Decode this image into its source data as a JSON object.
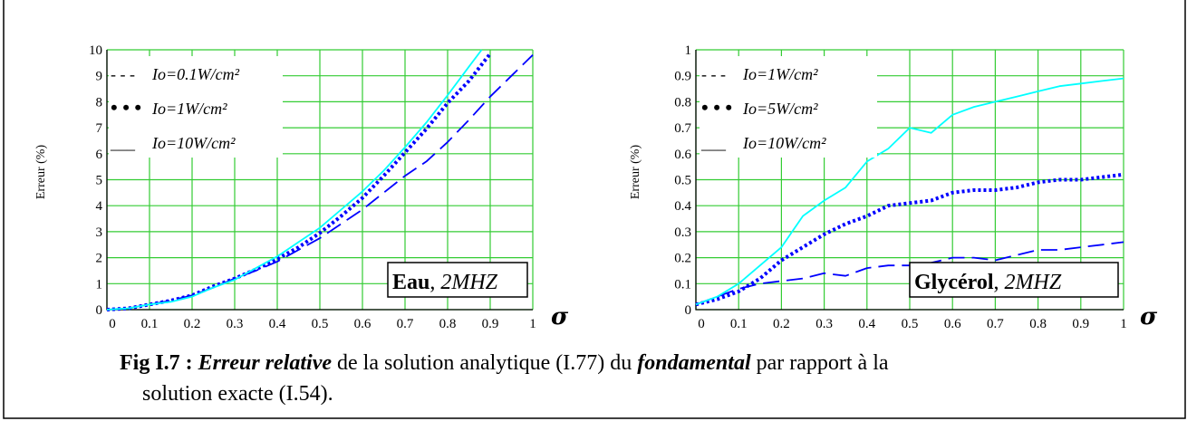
{
  "caption": {
    "fig_label": "Fig I.7 :",
    "em1": "Erreur relative",
    "text1": " de la solution analytique (I.77) du ",
    "em2": "fondamental",
    "text2": " par rapport à la",
    "line2": "solution exacte (I.54)."
  },
  "chart_data": [
    {
      "type": "line",
      "ylabel": "Erreur (%)",
      "xlabel": "σ",
      "xlim": [
        0,
        1
      ],
      "ylim": [
        0,
        10
      ],
      "grid": true,
      "xticks": [
        "0",
        "0.1",
        "0.2",
        "0.3",
        "0.4",
        "0.5",
        "0.6",
        "0.7",
        "0.8",
        "0.9",
        "1"
      ],
      "yticks": [
        "0",
        "1",
        "2",
        "3",
        "4",
        "5",
        "6",
        "7",
        "8",
        "9",
        "10"
      ],
      "legend_placement": "top-left",
      "annotation": {
        "bold": "Eau",
        "sep": ", ",
        "italic": "2MHZ"
      },
      "series": [
        {
          "name": "Io=0.1W/cm²",
          "legend_marker": "- - -",
          "color": "#0000ff",
          "style": "dashed",
          "x": [
            0,
            0.05,
            0.1,
            0.15,
            0.2,
            0.25,
            0.3,
            0.35,
            0.4,
            0.45,
            0.5,
            0.55,
            0.6,
            0.65,
            0.7,
            0.75,
            0.8,
            0.85,
            0.9,
            0.95,
            1.0
          ],
          "y": [
            0,
            0.05,
            0.2,
            0.35,
            0.55,
            0.85,
            1.2,
            1.5,
            1.85,
            2.3,
            2.75,
            3.3,
            3.85,
            4.5,
            5.15,
            5.7,
            6.45,
            7.3,
            8.2,
            9.0,
            9.8
          ]
        },
        {
          "name": "Io=1W/cm²",
          "legend_marker": "• • •",
          "color": "#0000ff",
          "style": "dotted",
          "x": [
            0,
            0.05,
            0.1,
            0.15,
            0.2,
            0.25,
            0.3,
            0.35,
            0.4,
            0.45,
            0.5,
            0.55,
            0.6,
            0.65,
            0.7,
            0.75,
            0.8,
            0.85,
            0.9
          ],
          "y": [
            0,
            0.05,
            0.2,
            0.35,
            0.55,
            0.9,
            1.2,
            1.55,
            1.95,
            2.4,
            2.95,
            3.6,
            4.3,
            5.15,
            6.05,
            6.95,
            7.95,
            8.8,
            9.85
          ]
        },
        {
          "name": "Io=10W/cm²",
          "legend_marker": "___",
          "color": "#00ffff",
          "style": "solid",
          "x": [
            0,
            0.05,
            0.1,
            0.15,
            0.2,
            0.25,
            0.3,
            0.35,
            0.4,
            0.45,
            0.5,
            0.55,
            0.6,
            0.65,
            0.7,
            0.75,
            0.8,
            0.85,
            0.88
          ],
          "y": [
            0,
            0.05,
            0.2,
            0.3,
            0.5,
            0.85,
            1.15,
            1.6,
            2.05,
            2.6,
            3.15,
            3.85,
            4.55,
            5.35,
            6.25,
            7.2,
            8.25,
            9.35,
            10.0
          ]
        }
      ]
    },
    {
      "type": "line",
      "ylabel": "Erreur (%)",
      "xlabel": "σ",
      "xlim": [
        0,
        1
      ],
      "ylim": [
        0,
        1
      ],
      "grid": true,
      "xticks": [
        "0",
        "0.1",
        "0.2",
        "0.3",
        "0.4",
        "0.5",
        "0.6",
        "0.7",
        "0.8",
        "0.9",
        "1"
      ],
      "yticks": [
        "0",
        "0.1",
        "0.2",
        "0.3",
        "0.4",
        "0.5",
        "0.6",
        "0.7",
        "0.8",
        "0.9",
        "1"
      ],
      "legend_placement": "top-left",
      "annotation": {
        "bold": "Glycérol",
        "sep": ", ",
        "italic": "2MHZ"
      },
      "series": [
        {
          "name": "Io=1W/cm²",
          "legend_marker": "- - -",
          "color": "#0000ff",
          "style": "dashed",
          "x": [
            0,
            0.05,
            0.1,
            0.15,
            0.2,
            0.25,
            0.3,
            0.35,
            0.4,
            0.45,
            0.5,
            0.55,
            0.6,
            0.65,
            0.7,
            0.75,
            0.8,
            0.85,
            0.9,
            0.95,
            1.0
          ],
          "y": [
            0.02,
            0.05,
            0.08,
            0.1,
            0.11,
            0.12,
            0.14,
            0.13,
            0.16,
            0.17,
            0.17,
            0.18,
            0.2,
            0.2,
            0.19,
            0.21,
            0.23,
            0.23,
            0.24,
            0.25,
            0.26
          ]
        },
        {
          "name": "Io=5W/cm²",
          "legend_marker": "• • •",
          "color": "#0000ff",
          "style": "dotted",
          "x": [
            0,
            0.05,
            0.1,
            0.15,
            0.2,
            0.25,
            0.3,
            0.35,
            0.4,
            0.45,
            0.5,
            0.55,
            0.6,
            0.65,
            0.7,
            0.75,
            0.8,
            0.85,
            0.9,
            0.95,
            1.0
          ],
          "y": [
            0.02,
            0.04,
            0.07,
            0.12,
            0.19,
            0.24,
            0.29,
            0.33,
            0.36,
            0.4,
            0.41,
            0.42,
            0.45,
            0.46,
            0.46,
            0.47,
            0.49,
            0.5,
            0.5,
            0.51,
            0.52
          ]
        },
        {
          "name": "Io=10W/cm²",
          "legend_marker": "___",
          "color": "#00ffff",
          "style": "solid",
          "x": [
            0,
            0.05,
            0.1,
            0.15,
            0.2,
            0.25,
            0.3,
            0.35,
            0.4,
            0.45,
            0.5,
            0.55,
            0.6,
            0.65,
            0.7,
            0.75,
            0.8,
            0.85,
            0.9,
            0.95,
            1.0
          ],
          "y": [
            0.02,
            0.05,
            0.1,
            0.17,
            0.24,
            0.36,
            0.42,
            0.47,
            0.57,
            0.62,
            0.7,
            0.68,
            0.75,
            0.78,
            0.8,
            0.82,
            0.84,
            0.86,
            0.87,
            0.88,
            0.89
          ]
        }
      ]
    }
  ]
}
